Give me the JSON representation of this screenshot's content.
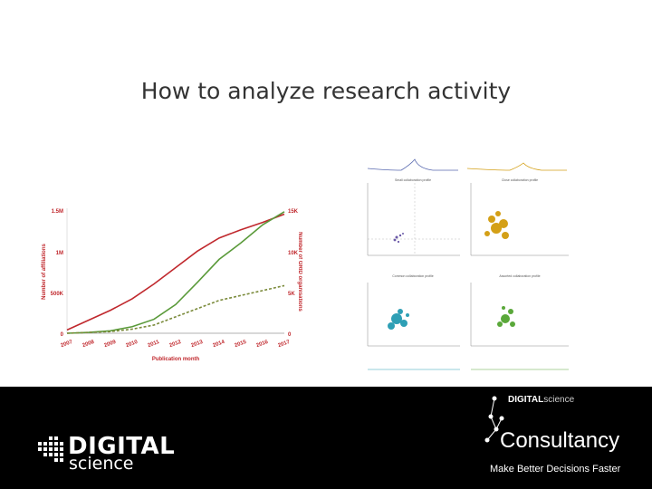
{
  "slide": {
    "title": "How to analyze research activity"
  },
  "growth_chart": {
    "left_axis_label": "Number of affiliations",
    "right_axis_label": "Number of GRID organisations",
    "x_axis_label": "Publication month",
    "left_ticks": [
      "1.5M",
      "1M",
      "500K",
      "0"
    ],
    "right_ticks": [
      "15K",
      "10K",
      "5K",
      "0"
    ],
    "x_ticks": [
      "2007",
      "2008",
      "2009",
      "2010",
      "2011",
      "2012",
      "2013",
      "2014",
      "2015",
      "2016",
      "2017"
    ]
  },
  "chart_data": {
    "type": "line",
    "x": [
      "2007",
      "2008",
      "2009",
      "2010",
      "2011",
      "2012",
      "2013",
      "2014",
      "2015",
      "2016",
      "2017"
    ],
    "series": [
      {
        "values": [
          0.04,
          0.16,
          0.28,
          0.42,
          0.6,
          0.8,
          1.0,
          1.16,
          1.26,
          1.35,
          1.45
        ],
        "color": "#c0282d"
      },
      {
        "values": [
          0.0,
          0.01,
          0.03,
          0.08,
          0.17,
          0.35,
          0.62,
          0.9,
          1.1,
          1.32,
          1.48
        ],
        "color": "#5a9a3a"
      },
      {
        "values": [
          0.0,
          0.01,
          0.02,
          0.05,
          0.1,
          0.2,
          0.3,
          0.4,
          0.46,
          0.52,
          0.58
        ],
        "color": "#7a8a3a",
        "style": "dashed"
      }
    ],
    "ylim": [
      0,
      1.5
    ]
  },
  "panels": {
    "titles": [
      "Small collaboration profile",
      "Close collaboration profile",
      "Common collaboration profile",
      "Assorted collaboration profile"
    ],
    "colors": [
      "#6b5aa8",
      "#d4a017",
      "#2e9fb5",
      "#5aa83a"
    ]
  },
  "footer": {
    "brand_word1": "DIGITAL",
    "brand_word2": "science",
    "consult_small_bold": "DIGITAL",
    "consult_small_rest": "science",
    "consult_main": "Consultancy",
    "tagline": "Make Better Decisions Faster"
  }
}
